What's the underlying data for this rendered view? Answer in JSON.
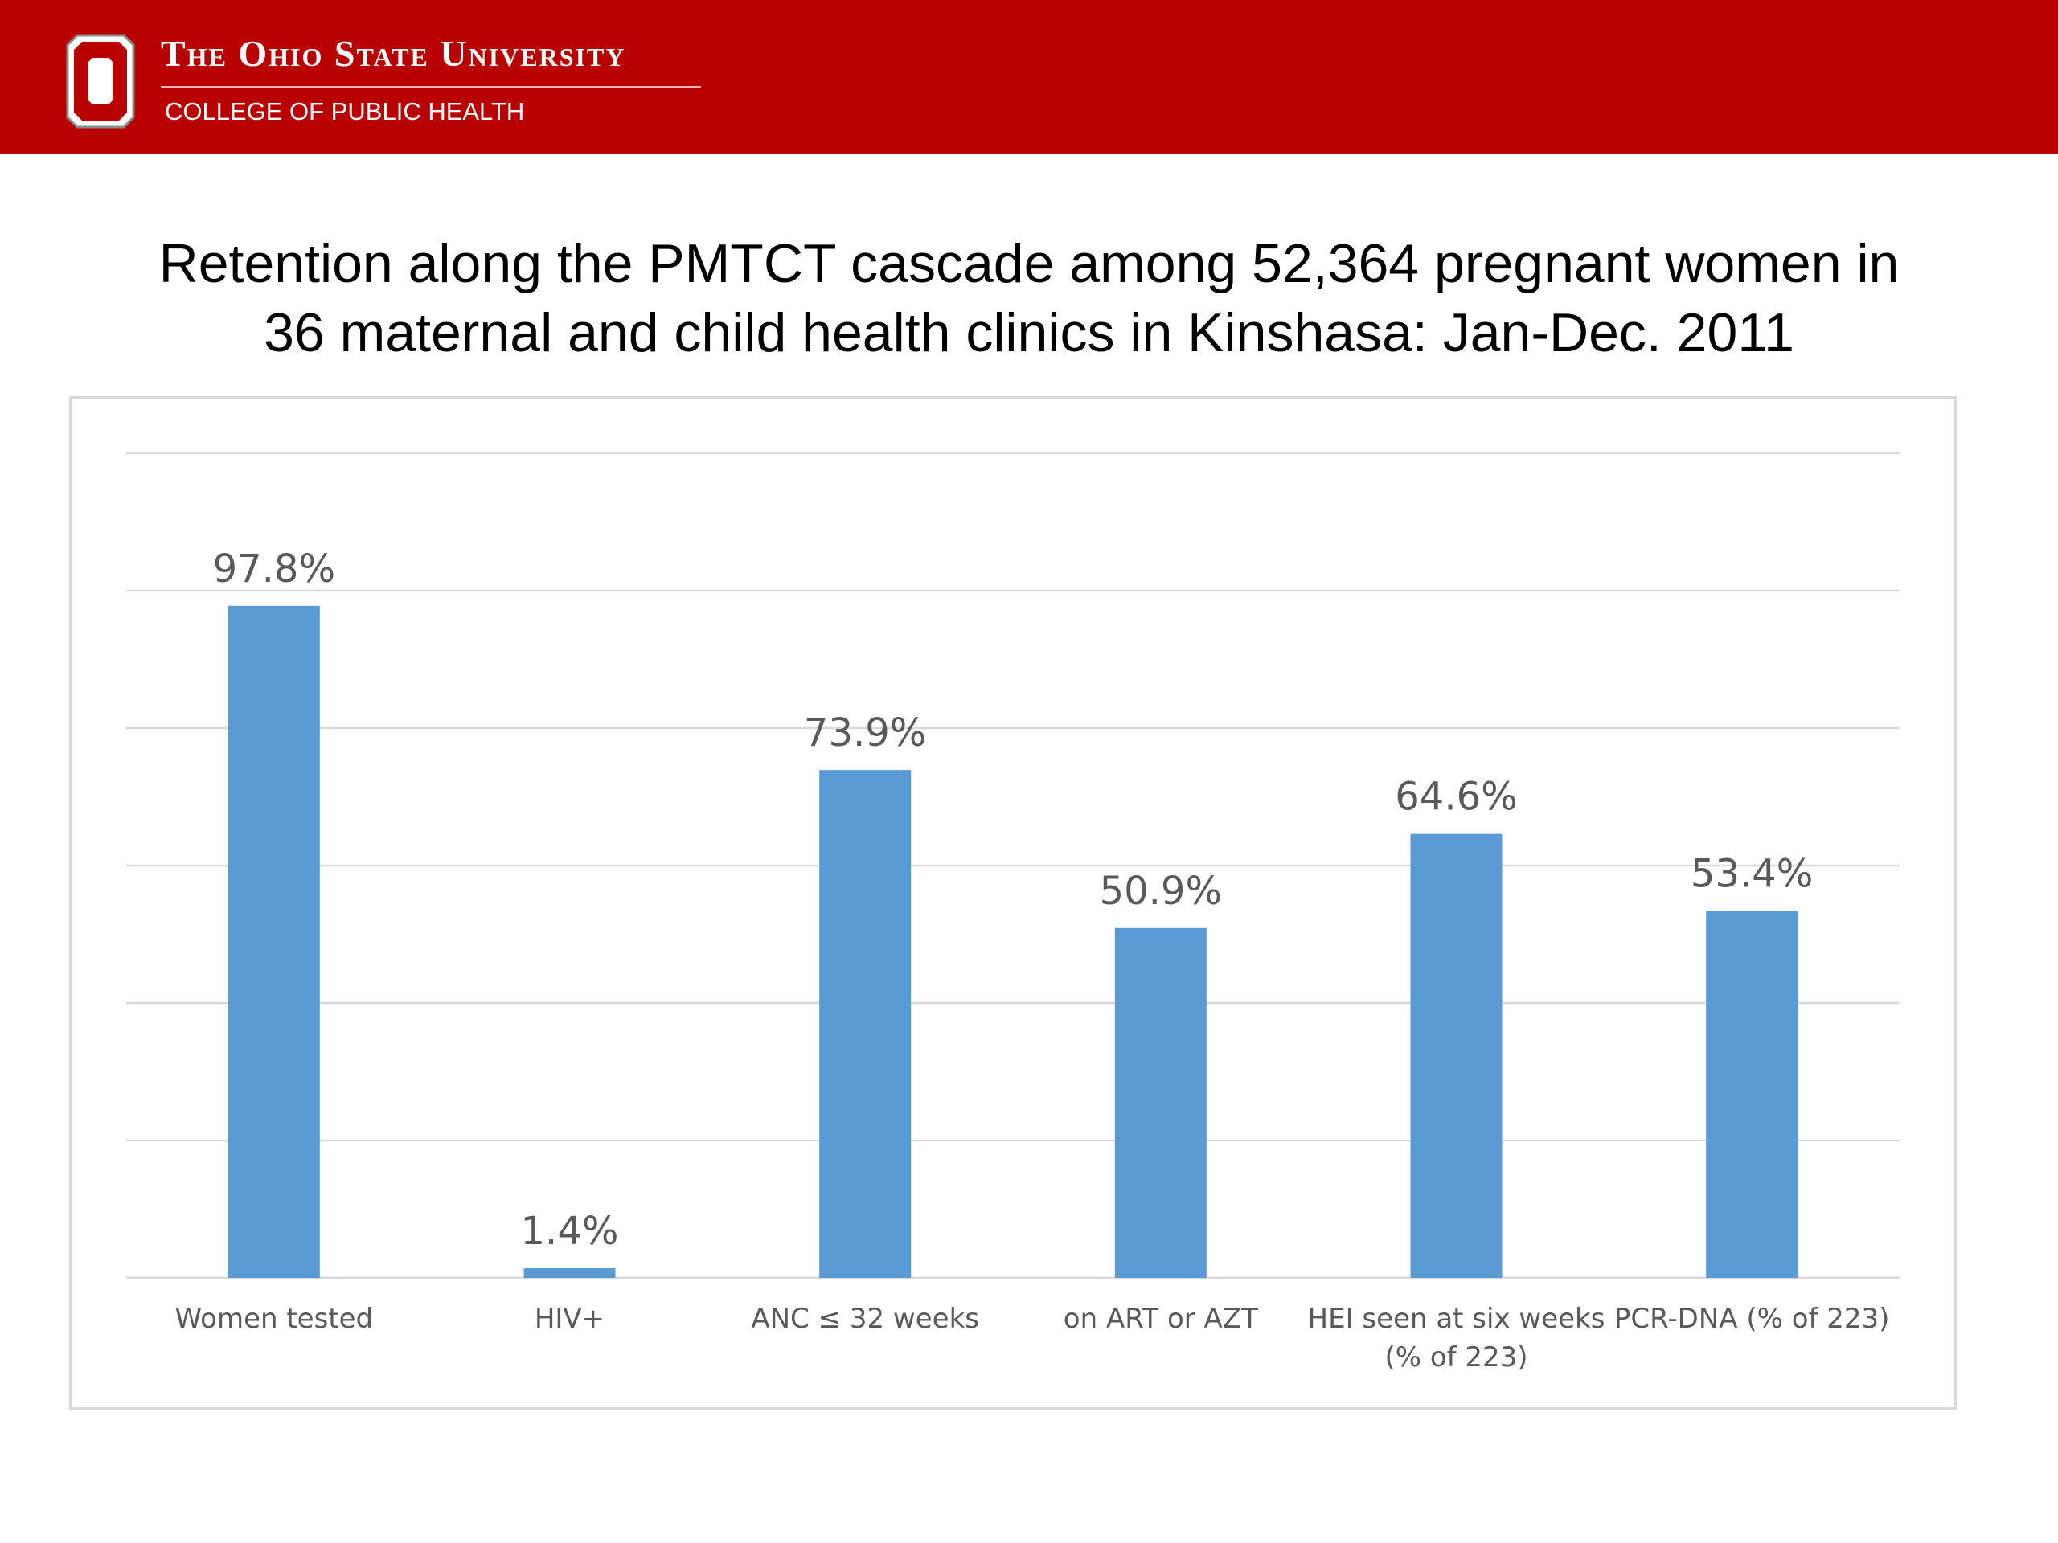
{
  "header": {
    "university": "The Ohio State University",
    "college": "COLLEGE OF PUBLIC HEALTH",
    "brand_color": "#b90000"
  },
  "slide": {
    "title_line1": "Retention along the PMTCT cascade among 52,364 pregnant women in",
    "title_line2": "36 maternal and child health clinics in Kinshasa: Jan-Dec. 2011"
  },
  "chart_data": {
    "type": "bar",
    "categories": [
      [
        "Women tested"
      ],
      [
        "HIV+"
      ],
      [
        "ANC ≤ 32 weeks"
      ],
      [
        "on ART or AZT"
      ],
      [
        "HEI seen at six weeks",
        "(% of 223)"
      ],
      [
        "PCR-DNA (% of 223)"
      ]
    ],
    "values": [
      97.8,
      1.4,
      73.9,
      50.9,
      64.6,
      53.4
    ],
    "data_labels": [
      "97.8%",
      "1.4%",
      "73.9%",
      "50.9%",
      "64.6%",
      "53.4%"
    ],
    "ylim": [
      0,
      120
    ],
    "grid": true,
    "bar_color": "#5b9bd5",
    "title": "",
    "xlabel": "",
    "ylabel": ""
  }
}
